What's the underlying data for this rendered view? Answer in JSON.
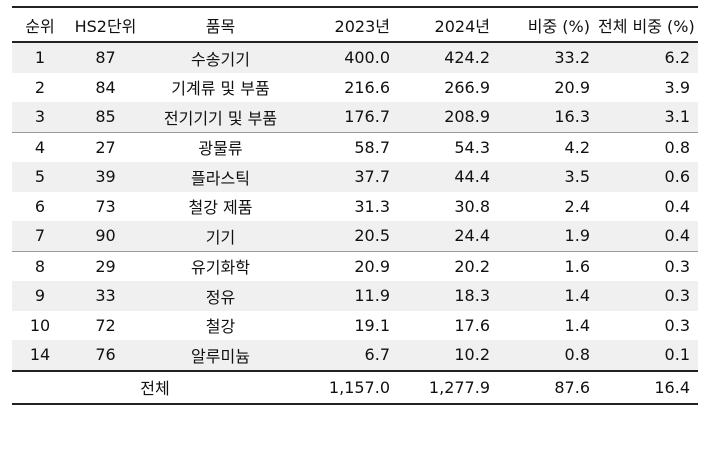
{
  "headers": [
    "순위",
    "HS2단위",
    "품목",
    "2023년",
    "2024년",
    "비중 (%)",
    "전체 비중 (%)"
  ],
  "rows": [
    {
      "rank": "1",
      "hs2": "87",
      "item": "수송기기",
      "y2023": "400.0",
      "y2024": "424.2",
      "share": "33.2",
      "total_share": "6.2"
    },
    {
      "rank": "2",
      "hs2": "84",
      "item": "기계류 및 부품",
      "y2023": "216.6",
      "y2024": "266.9",
      "share": "20.9",
      "total_share": "3.9"
    },
    {
      "rank": "3",
      "hs2": "85",
      "item": "전기기기 및 부품",
      "y2023": "176.7",
      "y2024": "208.9",
      "share": "16.3",
      "total_share": "3.1"
    },
    {
      "rank": "4",
      "hs2": "27",
      "item": "광물류",
      "y2023": "58.7",
      "y2024": "54.3",
      "share": "4.2",
      "total_share": "0.8"
    },
    {
      "rank": "5",
      "hs2": "39",
      "item": "플라스틱",
      "y2023": "37.7",
      "y2024": "44.4",
      "share": "3.5",
      "total_share": "0.6"
    },
    {
      "rank": "6",
      "hs2": "73",
      "item": "철강 제품",
      "y2023": "31.3",
      "y2024": "30.8",
      "share": "2.4",
      "total_share": "0.4"
    },
    {
      "rank": "7",
      "hs2": "90",
      "item": "기기",
      "y2023": "20.5",
      "y2024": "24.4",
      "share": "1.9",
      "total_share": "0.4"
    },
    {
      "rank": "8",
      "hs2": "29",
      "item": "유기화학",
      "y2023": "20.9",
      "y2024": "20.2",
      "share": "1.6",
      "total_share": "0.3"
    },
    {
      "rank": "9",
      "hs2": "33",
      "item": "정유",
      "y2023": "11.9",
      "y2024": "18.3",
      "share": "1.4",
      "total_share": "0.3"
    },
    {
      "rank": "10",
      "hs2": "72",
      "item": "철강",
      "y2023": "19.1",
      "y2024": "17.6",
      "share": "1.4",
      "total_share": "0.3"
    },
    {
      "rank": "14",
      "hs2": "76",
      "item": "알루미늄",
      "y2023": "6.7",
      "y2024": "10.2",
      "share": "0.8",
      "total_share": "0.1"
    }
  ],
  "total": {
    "label": "전체",
    "y2023": "1,157.0",
    "y2024": "1,277.9",
    "share": "87.6",
    "total_share": "16.4"
  }
}
